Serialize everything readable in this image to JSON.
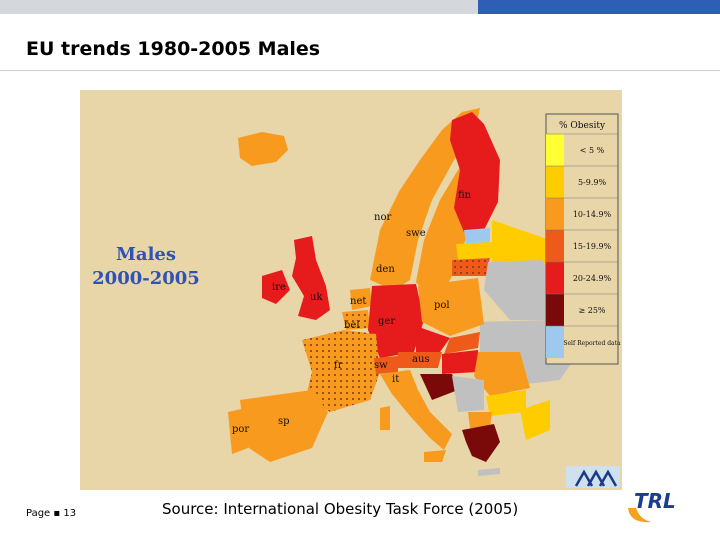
{
  "slide": {
    "title": "EU trends 1980-2005 Males",
    "page_label": "Page ▪ 13",
    "source": "Source: International Obesity Task Force (2005)",
    "logo_text": "TRL"
  },
  "map": {
    "heading_line1": "Males",
    "heading_line2": "2000-2005",
    "background_color": "#e8d5a8",
    "heading_color": "#2e52b8",
    "country_labels": {
      "fin": "fin",
      "nor": "nor",
      "swe": "swe",
      "den": "den",
      "ire": "ire",
      "uk": "uk",
      "net": "net",
      "bel": "bel",
      "ger": "ger",
      "pol": "pol",
      "fr": "fr",
      "sw": "sw",
      "aus": "aus",
      "it": "it",
      "sp": "sp",
      "por": "por"
    }
  },
  "legend": {
    "title": "% Obesity",
    "items": [
      {
        "label": "< 5 %",
        "color": "#ffff33"
      },
      {
        "label": "5-9.9%",
        "color": "#ffcc00"
      },
      {
        "label": "10-14.9%",
        "color": "#f79a1e"
      },
      {
        "label": "15-19.9%",
        "color": "#ee5a1a"
      },
      {
        "label": "20-24.9%",
        "color": "#e61b1b"
      },
      {
        "label": "≥ 25%",
        "color": "#7a0a0a"
      },
      {
        "label": "Self Reported data",
        "color": "#9ec8ee"
      }
    ]
  }
}
